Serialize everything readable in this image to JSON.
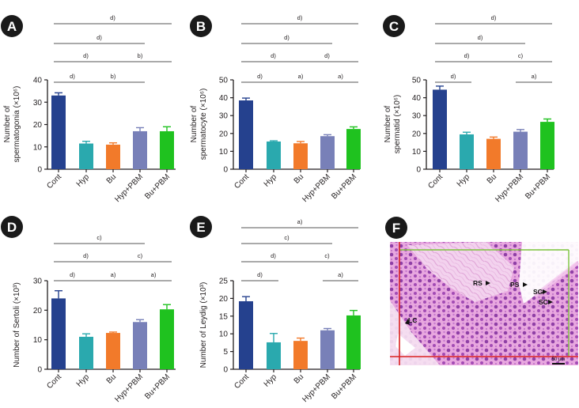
{
  "colors": {
    "Cont": "#25418e",
    "Hyp": "#2aa9ae",
    "Bu": "#f27a2a",
    "Hyp+PBM": "#7880b8",
    "Bu+PBM": "#1fc21f",
    "panel_badge": "#1a1a1a",
    "axis": "#231f20",
    "histology_frame_red": "#d92020",
    "histology_frame_green": "#7cc43c"
  },
  "chart_data": [
    {
      "panel": "A",
      "type": "bar",
      "categories": [
        "Cont",
        "Hyp",
        "Bu",
        "Hyp+PBM",
        "Bu+PBM"
      ],
      "values": [
        33,
        11.5,
        11,
        17,
        17
      ],
      "errors": [
        1.2,
        1.0,
        0.8,
        1.6,
        2.0
      ],
      "ylabel_line1": "Number of",
      "ylabel_line2": "spermatogonia (×10⁶)",
      "ylim": [
        0,
        40
      ],
      "yticks": [
        "0",
        "10",
        "20",
        "30",
        "40"
      ],
      "comparisons": [
        {
          "from": 0,
          "to": 4,
          "label": "d)",
          "level": 0
        },
        {
          "from": 0,
          "to": 3,
          "label": "d)",
          "level": 1
        },
        {
          "from": 0,
          "to": 2,
          "label": "d)",
          "level": 2
        },
        {
          "from": 2,
          "to": 4,
          "label": "b)",
          "level": 2
        },
        {
          "from": 0,
          "to": 1,
          "label": "d)",
          "level": 3
        },
        {
          "from": 1,
          "to": 3,
          "label": "b)",
          "level": 3
        }
      ]
    },
    {
      "panel": "B",
      "type": "bar",
      "categories": [
        "Cont",
        "Hyp",
        "Bu",
        "Hyp+PBM",
        "Bu+PBM"
      ],
      "values": [
        38.5,
        15.5,
        14.5,
        18.5,
        22.5
      ],
      "errors": [
        1.3,
        0.4,
        1.0,
        0.8,
        1.2
      ],
      "ylabel_line1": "Number of",
      "ylabel_line2": "spermatocyte (×10⁶)",
      "ylim": [
        0,
        50
      ],
      "yticks": [
        "0",
        "10",
        "20",
        "30",
        "40",
        "50"
      ],
      "comparisons": [
        {
          "from": 0,
          "to": 4,
          "label": "d)",
          "level": 0
        },
        {
          "from": 0,
          "to": 3,
          "label": "d)",
          "level": 1
        },
        {
          "from": 0,
          "to": 2,
          "label": "d)",
          "level": 2
        },
        {
          "from": 2,
          "to": 4,
          "label": "d)",
          "level": 2
        },
        {
          "from": 0,
          "to": 1,
          "label": "d)",
          "level": 3
        },
        {
          "from": 1,
          "to": 3,
          "label": "a)",
          "level": 3
        },
        {
          "from": 3,
          "to": 4,
          "label": "a)",
          "level": 3
        }
      ]
    },
    {
      "panel": "C",
      "type": "bar",
      "categories": [
        "Cont",
        "Hyp",
        "Bu",
        "Hyp+PBM",
        "Bu+PBM"
      ],
      "values": [
        44.5,
        19.5,
        17,
        21,
        26.5
      ],
      "errors": [
        2.0,
        1.2,
        1.0,
        1.2,
        1.6
      ],
      "ylabel_line1": "Number of",
      "ylabel_line2": "spermatid (×10⁶)",
      "ylim": [
        0,
        50
      ],
      "yticks": [
        "0",
        "10",
        "20",
        "30",
        "40",
        "50"
      ],
      "comparisons": [
        {
          "from": 0,
          "to": 4,
          "label": "d)",
          "level": 0
        },
        {
          "from": 0,
          "to": 3,
          "label": "d)",
          "level": 1
        },
        {
          "from": 0,
          "to": 2,
          "label": "d)",
          "level": 2
        },
        {
          "from": 2,
          "to": 4,
          "label": "c)",
          "level": 2
        },
        {
          "from": 0,
          "to": 1,
          "label": "d)",
          "level": 3
        },
        {
          "from": 3,
          "to": 4,
          "label": "a)",
          "level": 3
        }
      ]
    },
    {
      "panel": "D",
      "type": "bar",
      "categories": [
        "Cont",
        "Hyp",
        "Bu",
        "Hyp+PBM",
        "Bu+PBM"
      ],
      "values": [
        24,
        11,
        12.3,
        16,
        20.3
      ],
      "errors": [
        2.6,
        1.0,
        0.3,
        0.8,
        1.6
      ],
      "ylabel_line1": "Number of Sertoli (×10³)",
      "ylabel_line2": "",
      "ylim": [
        0,
        30
      ],
      "yticks": [
        "0",
        "10",
        "20",
        "30"
      ],
      "comparisons": [
        {
          "from": 0,
          "to": 3,
          "label": "c)",
          "level": 1
        },
        {
          "from": 0,
          "to": 2,
          "label": "d)",
          "level": 2
        },
        {
          "from": 2,
          "to": 4,
          "label": "c)",
          "level": 2
        },
        {
          "from": 0,
          "to": 1,
          "label": "d)",
          "level": 3
        },
        {
          "from": 1,
          "to": 3,
          "label": "a)",
          "level": 3
        },
        {
          "from": 3,
          "to": 4,
          "label": "a)",
          "level": 3
        }
      ]
    },
    {
      "panel": "E",
      "type": "bar",
      "categories": [
        "Cont",
        "Hyp",
        "Bu",
        "Hyp+PBM",
        "Bu+PBM"
      ],
      "values": [
        19.2,
        7.6,
        8,
        11,
        15.2
      ],
      "errors": [
        1.3,
        2.5,
        0.8,
        0.5,
        1.4
      ],
      "ylabel_line1": "Number of Leydig (×10³)",
      "ylabel_line2": "",
      "ylim": [
        0,
        25
      ],
      "yticks": [
        "0",
        "5",
        "10",
        "15",
        "20",
        "25"
      ],
      "comparisons": [
        {
          "from": 0,
          "to": 4,
          "label": "a)",
          "level": 0
        },
        {
          "from": 0,
          "to": 3,
          "label": "c)",
          "level": 1
        },
        {
          "from": 0,
          "to": 2,
          "label": "d)",
          "level": 2
        },
        {
          "from": 2,
          "to": 4,
          "label": "c)",
          "level": 2
        },
        {
          "from": 0,
          "to": 1,
          "label": "d)",
          "level": 3
        },
        {
          "from": 3,
          "to": 4,
          "label": "a)",
          "level": 3
        }
      ]
    }
  ],
  "histology": {
    "panel": "F",
    "labels": [
      "RS",
      "PS",
      "SG",
      "SC",
      "LC"
    ],
    "scale_bar": "50 μm"
  }
}
